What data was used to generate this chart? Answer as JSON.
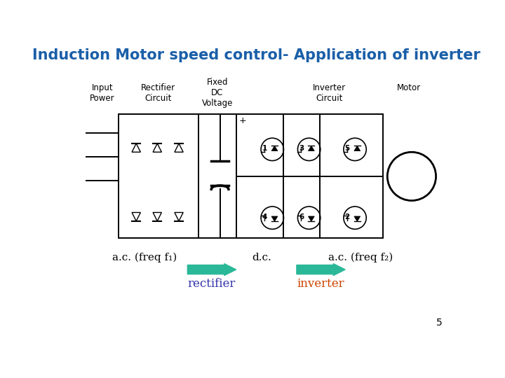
{
  "title": "Induction Motor speed control- Application of inverter",
  "title_color": "#1a5fa8",
  "title_fontsize": 15,
  "bg_color": "#ffffff",
  "label_input_power": "Input\nPower",
  "label_rectifier": "Rectifier\nCircuit",
  "label_fixed_dc": "Fixed\nDC\nVoltage",
  "label_inverter": "Inverter\nCircuit",
  "label_motor": "Motor",
  "text_ac1": "a.c. (freq f₁)",
  "text_dc": "d.c.",
  "text_ac2": "a.c. (freq f₂)",
  "text_rectifier": "rectifier",
  "text_inverter": "inverter",
  "text_page": "5",
  "rectifier_color": "#3333aa",
  "inverter_color": "#cc4400",
  "arrow_color": "#2ab899",
  "circuit_color": "#000000",
  "label_color": "#000000"
}
